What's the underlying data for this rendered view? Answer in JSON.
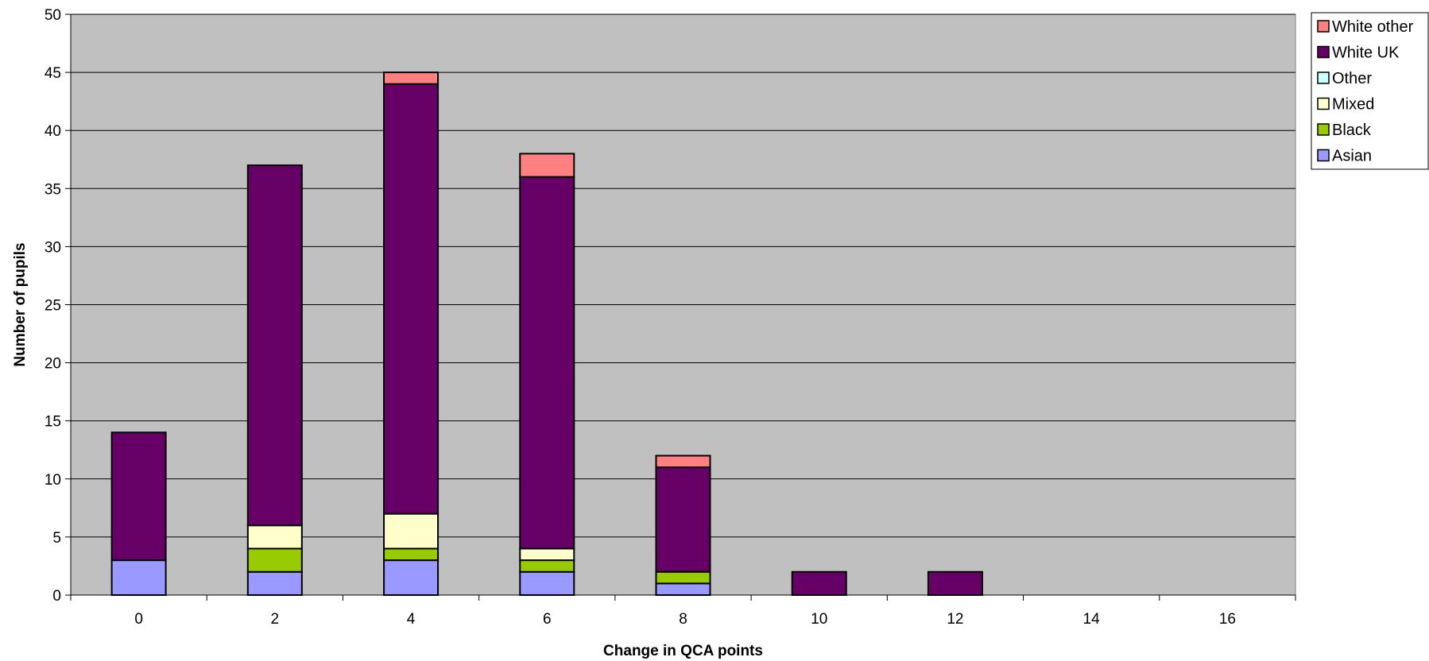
{
  "chart_data": {
    "type": "bar",
    "stacked": true,
    "categories": [
      "0",
      "2",
      "4",
      "6",
      "8",
      "10",
      "12",
      "14",
      "16"
    ],
    "series": [
      {
        "name": "Asian",
        "color": "#9999ff",
        "values": [
          3,
          2,
          3,
          2,
          1,
          0,
          0,
          0,
          0
        ]
      },
      {
        "name": "Black",
        "color": "#99cc00",
        "values": [
          0,
          2,
          1,
          1,
          1,
          0,
          0,
          0,
          0
        ]
      },
      {
        "name": "Mixed",
        "color": "#ffffcc",
        "values": [
          0,
          2,
          3,
          1,
          0,
          0,
          0,
          0,
          0
        ]
      },
      {
        "name": "Other",
        "color": "#ccffff",
        "values": [
          0,
          0,
          0,
          0,
          0,
          0,
          0,
          0,
          0
        ]
      },
      {
        "name": "White UK",
        "color": "#660066",
        "values": [
          11,
          31,
          37,
          32,
          9,
          2,
          2,
          0,
          0
        ]
      },
      {
        "name": "White other",
        "color": "#ff8080",
        "values": [
          0,
          0,
          1,
          2,
          1,
          0,
          0,
          0,
          0
        ]
      }
    ],
    "xlabel": "Change in QCA points",
    "ylabel": "Number of pupils",
    "ylim": [
      0,
      50
    ],
    "yticks": [
      0,
      5,
      10,
      15,
      20,
      25,
      30,
      35,
      40,
      45,
      50
    ],
    "grid": true,
    "legend": "right",
    "plot_background": "#c0c0c0"
  }
}
